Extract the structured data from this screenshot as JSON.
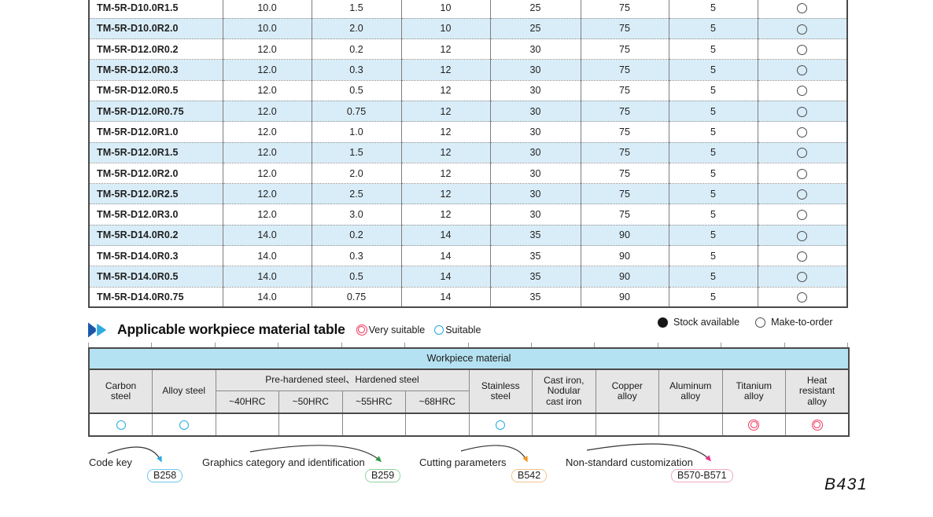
{
  "page_number": "B431",
  "spec_table": {
    "rows": [
      {
        "code": "TM-5R-D10.0R1.5",
        "values": [
          "10.0",
          "1.5",
          "10",
          "25",
          "75",
          "5"
        ],
        "availability": "make-to-order"
      },
      {
        "code": "TM-5R-D10.0R2.0",
        "values": [
          "10.0",
          "2.0",
          "10",
          "25",
          "75",
          "5"
        ],
        "availability": "make-to-order"
      },
      {
        "code": "TM-5R-D12.0R0.2",
        "values": [
          "12.0",
          "0.2",
          "12",
          "30",
          "75",
          "5"
        ],
        "availability": "make-to-order"
      },
      {
        "code": "TM-5R-D12.0R0.3",
        "values": [
          "12.0",
          "0.3",
          "12",
          "30",
          "75",
          "5"
        ],
        "availability": "make-to-order"
      },
      {
        "code": "TM-5R-D12.0R0.5",
        "values": [
          "12.0",
          "0.5",
          "12",
          "30",
          "75",
          "5"
        ],
        "availability": "make-to-order"
      },
      {
        "code": "TM-5R-D12.0R0.75",
        "values": [
          "12.0",
          "0.75",
          "12",
          "30",
          "75",
          "5"
        ],
        "availability": "make-to-order"
      },
      {
        "code": "TM-5R-D12.0R1.0",
        "values": [
          "12.0",
          "1.0",
          "12",
          "30",
          "75",
          "5"
        ],
        "availability": "make-to-order"
      },
      {
        "code": "TM-5R-D12.0R1.5",
        "values": [
          "12.0",
          "1.5",
          "12",
          "30",
          "75",
          "5"
        ],
        "availability": "make-to-order"
      },
      {
        "code": "TM-5R-D12.0R2.0",
        "values": [
          "12.0",
          "2.0",
          "12",
          "30",
          "75",
          "5"
        ],
        "availability": "make-to-order"
      },
      {
        "code": "TM-5R-D12.0R2.5",
        "values": [
          "12.0",
          "2.5",
          "12",
          "30",
          "75",
          "5"
        ],
        "availability": "make-to-order"
      },
      {
        "code": "TM-5R-D12.0R3.0",
        "values": [
          "12.0",
          "3.0",
          "12",
          "30",
          "75",
          "5"
        ],
        "availability": "make-to-order"
      },
      {
        "code": "TM-5R-D14.0R0.2",
        "values": [
          "14.0",
          "0.2",
          "14",
          "35",
          "90",
          "5"
        ],
        "availability": "make-to-order"
      },
      {
        "code": "TM-5R-D14.0R0.3",
        "values": [
          "14.0",
          "0.3",
          "14",
          "35",
          "90",
          "5"
        ],
        "availability": "make-to-order"
      },
      {
        "code": "TM-5R-D14.0R0.5",
        "values": [
          "14.0",
          "0.5",
          "14",
          "35",
          "90",
          "5"
        ],
        "availability": "make-to-order"
      },
      {
        "code": "TM-5R-D14.0R0.75",
        "values": [
          "14.0",
          "0.75",
          "14",
          "35",
          "90",
          "5"
        ],
        "availability": "make-to-order"
      }
    ]
  },
  "section_heading": {
    "title": "Applicable workpiece material table",
    "legend": [
      {
        "type": "very-suitable",
        "symbol": "◎",
        "label": "Very suitable"
      },
      {
        "type": "suitable",
        "symbol": "○",
        "label": "Suitable"
      }
    ]
  },
  "stock_legend": [
    {
      "type": "stock",
      "symbol": "●",
      "label": "Stock available"
    },
    {
      "type": "make-to-order",
      "symbol": "○",
      "label": "Make-to-order"
    }
  ],
  "material_table": {
    "title": "Workpiece material",
    "group_header": "Pre-hardened steel、Hardened steel",
    "columns": [
      {
        "label": "Carbon\nsteel",
        "group": false,
        "rating": "suitable"
      },
      {
        "label": "Alloy steel",
        "group": false,
        "rating": "suitable"
      },
      {
        "label": "~40HRC",
        "group": true,
        "rating": ""
      },
      {
        "label": "~50HRC",
        "group": true,
        "rating": ""
      },
      {
        "label": "~55HRC",
        "group": true,
        "rating": ""
      },
      {
        "label": "~68HRC",
        "group": true,
        "rating": ""
      },
      {
        "label": "Stainless\nsteel",
        "group": false,
        "rating": "suitable"
      },
      {
        "label": "Cast iron,\nNodular\ncast iron",
        "group": false,
        "rating": ""
      },
      {
        "label": "Copper\nalloy",
        "group": false,
        "rating": ""
      },
      {
        "label": "Aluminum\nalloy",
        "group": false,
        "rating": ""
      },
      {
        "label": "Titanium\nalloy",
        "group": false,
        "rating": "very-suitable"
      },
      {
        "label": "Heat\nresistant\nalloy",
        "group": false,
        "rating": "very-suitable"
      }
    ]
  },
  "references": [
    {
      "label": "Code key",
      "badge": "B258",
      "border": "#6ec6ee",
      "accent": "#29a9e1"
    },
    {
      "label": "Graphics category and identification",
      "badge": "B259",
      "border": "#90d2a0",
      "accent": "#2f9e44"
    },
    {
      "label": "Cutting parameters",
      "badge": "B542",
      "border": "#f4c48c",
      "accent": "#f29422"
    },
    {
      "label": "Non-standard customization",
      "badge": "B570-B571",
      "border": "#f3a8c8",
      "accent": "#e8308a"
    }
  ],
  "colors": {
    "row_alt": "#d9edf8",
    "band_blue": "#b5e2f2",
    "header_gray": "#e6e6e6",
    "suitable": "#29a9e1",
    "very_suitable": "#f03a60"
  }
}
